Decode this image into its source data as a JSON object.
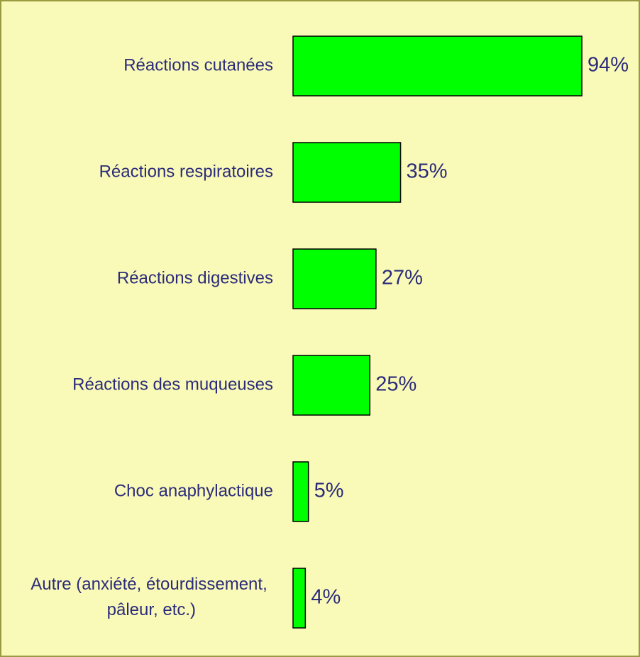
{
  "chart_data": {
    "type": "barh",
    "categories": [
      "Réactions cutanées",
      "Réactions respiratoires",
      "Réactions digestives",
      "Réactions des muqueuses",
      "Choc anaphylactique",
      "Autre (anxiété, étourdissement, pâleur, etc.)"
    ],
    "values": [
      94,
      35,
      27,
      25,
      5,
      4
    ],
    "value_labels": [
      "94%",
      "35%",
      "27%",
      "25%",
      "5%",
      "4%"
    ],
    "color": "#00ff00"
  }
}
